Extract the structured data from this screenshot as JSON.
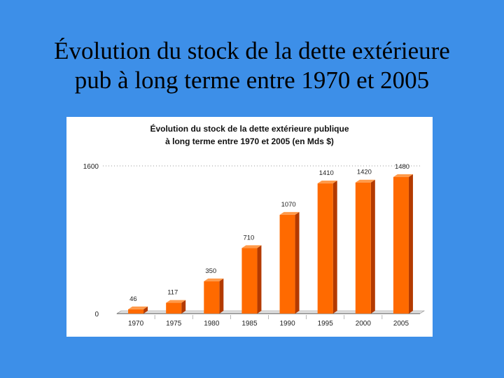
{
  "slide": {
    "title_line1": "Évolution du stock de la dette extérieure",
    "title_line2": "pub à long terme entre 1970 et 2005"
  },
  "colors": {
    "background": "#3d8fe8",
    "bar_front": "#ff6a00",
    "bar_side": "#b33a00",
    "bar_top": "#ff9a4a"
  },
  "chart_data": {
    "type": "bar",
    "title_line1": "Évolution du stock de la dette extérieure publique",
    "title_line2": "à long terme entre 1970 et 2005 (en Mds $)",
    "categories": [
      "1970",
      "1975",
      "1980",
      "1985",
      "1990",
      "1995",
      "2000",
      "2005"
    ],
    "values": [
      46,
      117,
      350,
      710,
      1070,
      1410,
      1420,
      1480
    ],
    "data_labels": [
      "46",
      "117",
      "350",
      "710",
      "1070",
      "1410",
      "1420",
      "1480"
    ],
    "y_ticks": [
      "0",
      "1600"
    ],
    "ylim": [
      0,
      1600
    ],
    "grid": false,
    "legend": "none",
    "xlabel": "",
    "ylabel": ""
  }
}
